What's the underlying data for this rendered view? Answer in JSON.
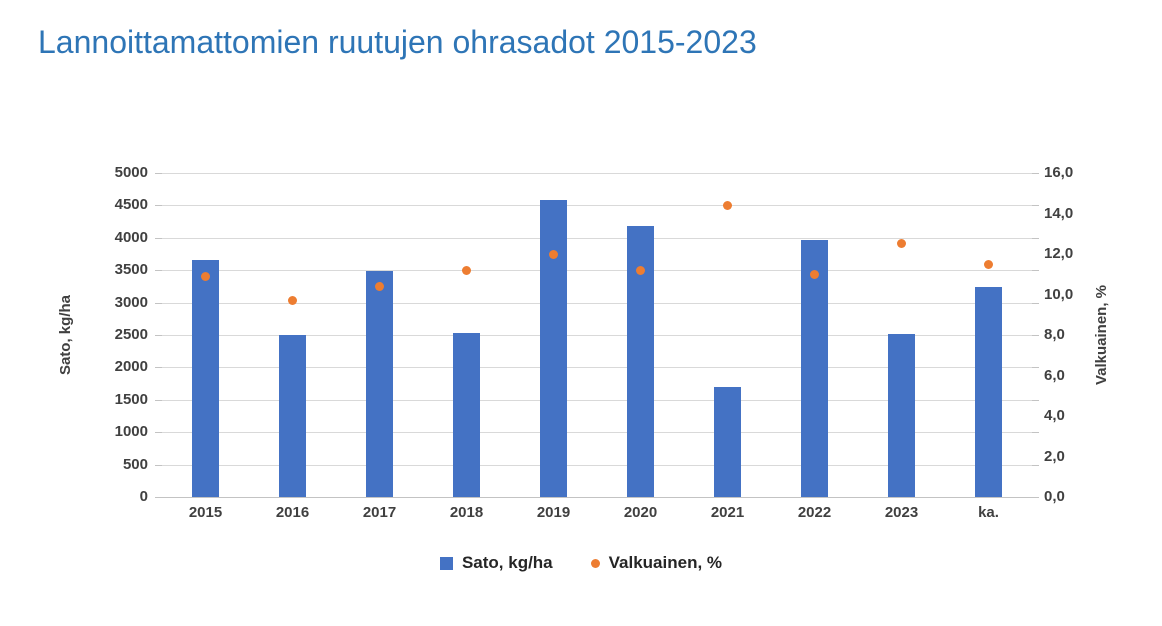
{
  "title": {
    "text": "Lannoittamattomien ruutujen ohrasadot 2015-2023",
    "color": "#2E75B6"
  },
  "chart_data": {
    "type": "bar",
    "subtype": "combo-bar-scatter",
    "categories": [
      "2015",
      "2016",
      "2017",
      "2018",
      "2019",
      "2020",
      "2021",
      "2022",
      "2023",
      "ka."
    ],
    "series": [
      {
        "name": "Sato, kg/ha",
        "type": "bar",
        "axis": "left",
        "color": "#4472C4",
        "values": [
          3660,
          2500,
          3480,
          2530,
          4590,
          4180,
          1700,
          3970,
          2520,
          3240
        ]
      },
      {
        "name": "Valkuainen, %",
        "type": "scatter",
        "axis": "right",
        "color": "#ED7D31",
        "values": [
          10.9,
          9.7,
          10.4,
          11.2,
          12.0,
          11.2,
          14.4,
          11.0,
          12.5,
          11.5
        ]
      }
    ],
    "left_axis": {
      "title": "Sato, kg/ha",
      "min": 0,
      "max": 5000,
      "step": 500,
      "tick_labels": [
        "0",
        "500",
        "1000",
        "1500",
        "2000",
        "2500",
        "3000",
        "3500",
        "4000",
        "4500",
        "5000"
      ]
    },
    "right_axis": {
      "title": "Valkuainen, %",
      "min": 0,
      "max": 16,
      "step": 2,
      "tick_labels": [
        "0,0",
        "2,0",
        "4,0",
        "6,0",
        "8,0",
        "10,0",
        "12,0",
        "14,0",
        "16,0"
      ]
    },
    "legend": {
      "position": "bottom",
      "entries": [
        "Sato, kg/ha",
        "Valkuainen, %"
      ]
    },
    "grid": true
  }
}
